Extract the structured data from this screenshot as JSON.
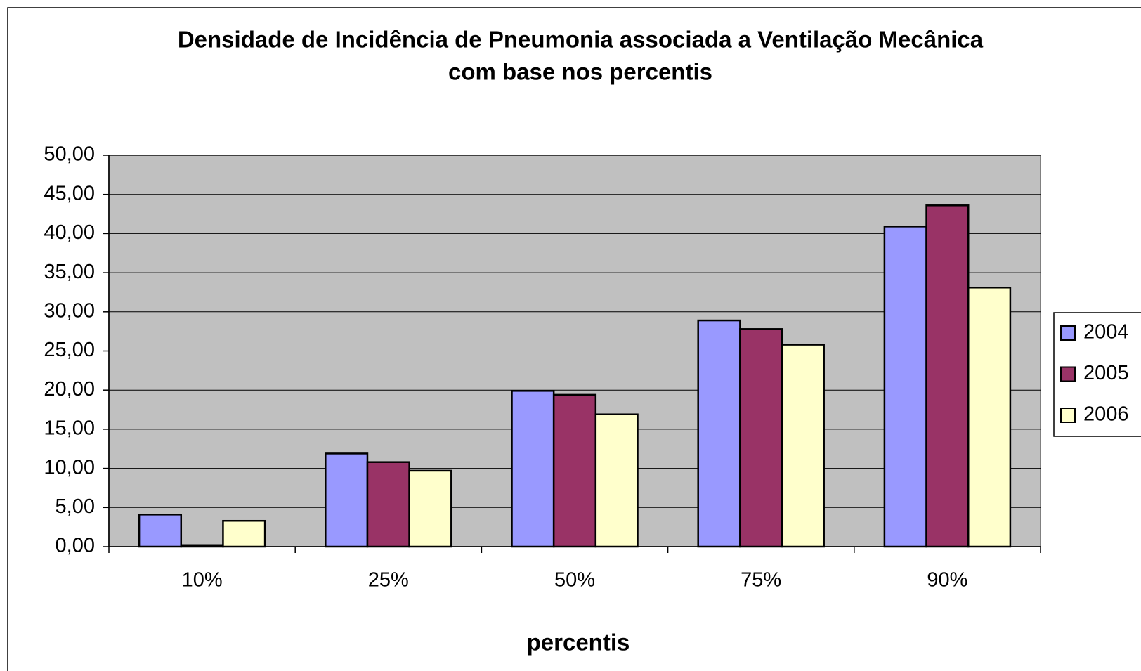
{
  "chart_data": {
    "type": "bar",
    "title": [
      "Densidade de Incidência de Pneumonia associada a Ventilação Mecânica",
      "com base nos percentis"
    ],
    "x_label": "percentis",
    "categories": [
      "10%",
      "25%",
      "50%",
      "75%",
      "90%"
    ],
    "series": [
      {
        "name": "2004",
        "color": "#9999ff",
        "values": [
          4.1,
          11.9,
          19.9,
          28.9,
          40.9
        ]
      },
      {
        "name": "2005",
        "color": "#993366",
        "values": [
          0.2,
          10.8,
          19.4,
          27.8,
          43.6
        ]
      },
      {
        "name": "2006",
        "color": "#ffffcc",
        "values": [
          3.3,
          9.7,
          16.9,
          25.8,
          33.1
        ]
      }
    ],
    "ylim": [
      0,
      50
    ],
    "yticks": [
      {
        "value": 0,
        "label": "0,00"
      },
      {
        "value": 5,
        "label": "5,00"
      },
      {
        "value": 10,
        "label": "10,00"
      },
      {
        "value": 15,
        "label": "15,00"
      },
      {
        "value": 20,
        "label": "20,00"
      },
      {
        "value": 25,
        "label": "25,00"
      },
      {
        "value": 30,
        "label": "30,00"
      },
      {
        "value": 35,
        "label": "35,00"
      },
      {
        "value": 40,
        "label": "40,00"
      },
      {
        "value": 45,
        "label": "45,00"
      },
      {
        "value": 50,
        "label": "50,00"
      }
    ],
    "grid": true,
    "legend": "right",
    "plot_background": "#c0c0c0"
  }
}
